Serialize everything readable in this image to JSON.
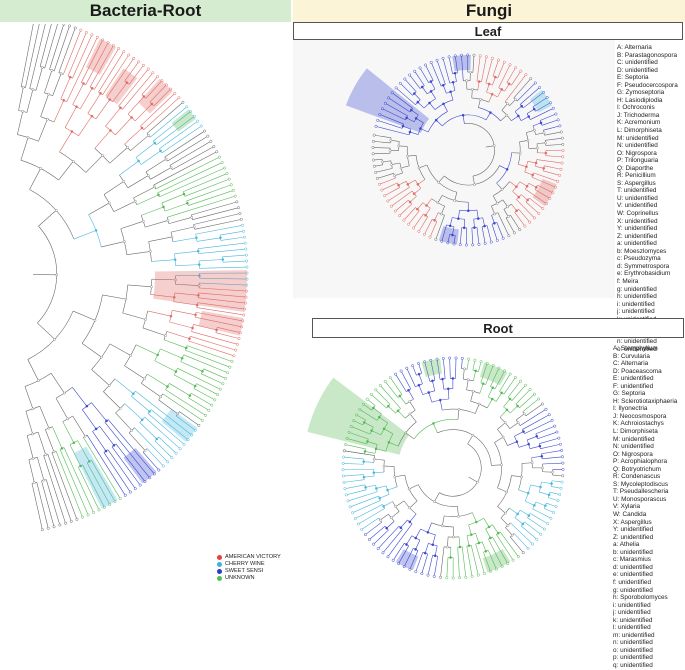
{
  "header": {
    "left_title": "Bacteria-Root",
    "right_title": "Fungi"
  },
  "leaf": {
    "title": "Leaf",
    "legend": [
      "A: Alternaria",
      "B: Parastagonospora",
      "C: unidentified",
      "D: unidentified",
      "E: Septoria",
      "F: Pseudocercospora",
      "G: Zymoseptoria",
      "H: Lasiodiplodia",
      "I: Ochroconis",
      "J: Trichoderma",
      "K: Acremonium",
      "L: Dimorphiseta",
      "M: unidentified",
      "N: unidentified",
      "O: Nigrospora",
      "P: Trilonguaria",
      "Q: Diaporthe",
      "R: Penicillium",
      "S: Aspergillus",
      "T: unidentified",
      "U: unidentified",
      "V: unidentified",
      "W: Coprinellus",
      "X: unidentified",
      "Y: unidentified",
      "Z: unidentified",
      "a: unidentified",
      "b: Moeszlomyces",
      "c: Pseudozyma",
      "d: Symmetrospora",
      "e: Erythrobasidium",
      "f: Meira",
      "g: unidentified",
      "h: unidentified",
      "i: unidentified",
      "j: unidentified",
      "k: unidentified",
      "l: unidentified",
      "m: unidentified",
      "n: unidentified",
      "o: unidentified"
    ]
  },
  "root": {
    "title": "Root",
    "legend": [
      "A: Stemphylium",
      "B: Curvularia",
      "C: Alternaria",
      "D: Poaceascoma",
      "E: unidentified",
      "F: unidentified",
      "G: Septoria",
      "H: Sclerotiotaxiphaeria",
      "I: Ilyonectria",
      "J: Neocosmospora",
      "K: Achroiostachys",
      "L: Dimorphiseta",
      "M: unidentified",
      "N: unidentified",
      "O: Nigrospora",
      "P: Acrophialophora",
      "Q: Botryotrichum",
      "R: Condenascus",
      "S: Mycoleptodiscus",
      "T: Pseudallescheria",
      "U: Monosporascus",
      "V: Xylaria",
      "W: Candida",
      "X: Aspergillus",
      "Y: unidentified",
      "Z: unidentified",
      "a: Athelia",
      "b: unidentified",
      "c: Marasmius",
      "d: unidentified",
      "e: unidentified",
      "f: unidentified",
      "g: unidentified",
      "h: Sporobolomyces",
      "i: unidentified",
      "j: unidentified",
      "k: unidentified",
      "l: unidentified",
      "m: unidentified",
      "n: unidentified",
      "o: unidentified",
      "p: unidentified",
      "q: unidentified"
    ]
  },
  "cultivars": [
    {
      "label": "AMERICAN VICTORY",
      "color": "#e8403a"
    },
    {
      "label": "CHERRY WINE",
      "color": "#3fb0e0"
    },
    {
      "label": "SWEET SENSI",
      "color": "#2a3bd0"
    },
    {
      "label": "UNKNOWN",
      "color": "#4dc24d"
    }
  ],
  "colors": {
    "red": "#e06a64",
    "cyan": "#49b6dc",
    "blue": "#3a46cf",
    "green": "#55b955",
    "gray": "#6a6a6a"
  }
}
